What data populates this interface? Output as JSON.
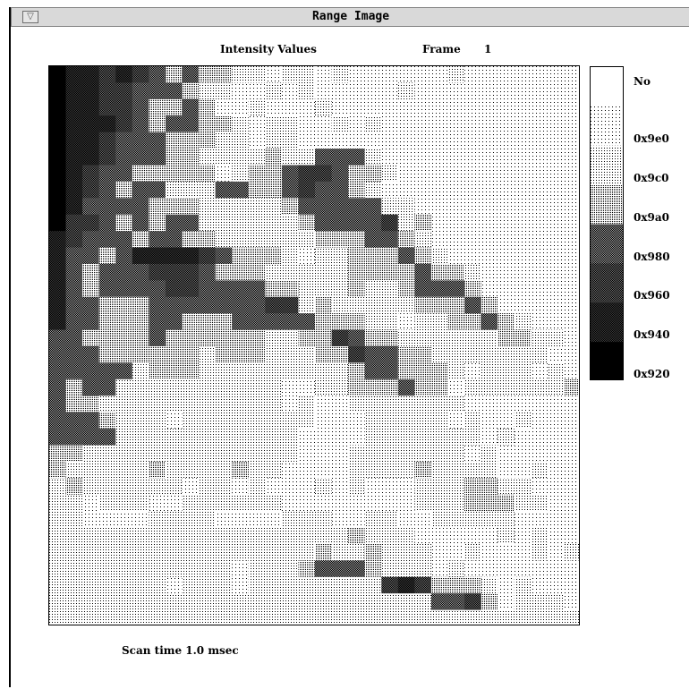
{
  "window": {
    "title": "Range Image"
  },
  "header": {
    "label": "Intensity Values",
    "frame_label": "Frame",
    "frame_number": "1"
  },
  "legend": [
    {
      "label": "No",
      "shade": 0
    },
    {
      "label": "0x9e0",
      "shade": 1
    },
    {
      "label": "0x9c0",
      "shade": 2
    },
    {
      "label": "0x9a0",
      "shade": 3
    },
    {
      "label": "0x980",
      "shade": 4
    },
    {
      "label": "0x960",
      "shade": 5
    },
    {
      "label": "0x940",
      "shade": 6
    },
    {
      "label": "0x920",
      "shade": 7
    }
  ],
  "footer": {
    "scan_time": "Scan time 1.0 msec"
  },
  "image_grid": {
    "columns": 32,
    "rows": 34,
    "cells": [
      "76656543433221221211111121111111",
      "76655444322112121111121111111111",
      "76655433431121112111111111111111",
      "76665434433212211212111111111111",
      "76654443332212211111111111111111",
      "76654443322223224442111111111111",
      "76544333331233455433211111111111",
      "76543442224433454432111111111111",
      "76444433322222344444221111111111",
      "75543434422222234444523111111111",
      "65444344332222223334432111111111",
      "64434666654333212233343211111111",
      "64344455543332222233334332111111",
      "64344445544443322232234443111111",
      "64433344444445523222223334311111",
      "64433344333444443332212233432111",
      "44333343333332233543322222233221",
      "44433333323332223354433222222211",
      "44444233322222222234433321222121",
      "43442222222222112233343312222223",
      "43322222222222121122222221111111",
      "44432221222222221112222212112111",
      "44442222222222211112222222121111",
      "33222222222222211122222221211111",
      "32222232222322111122223222211211",
      "23222222122121112121112223322111",
      "22122211222222111111112223332211",
      "22111122221111222112211222221111",
      "22222222222222222232221111121211",
      "22222222222222223223222112111212",
      "22222222222122234443222121111111",
      "22222221222122222222565333212111",
      "22222222222222222222222445312221",
      "22222222222222222222222222222222"
    ]
  }
}
